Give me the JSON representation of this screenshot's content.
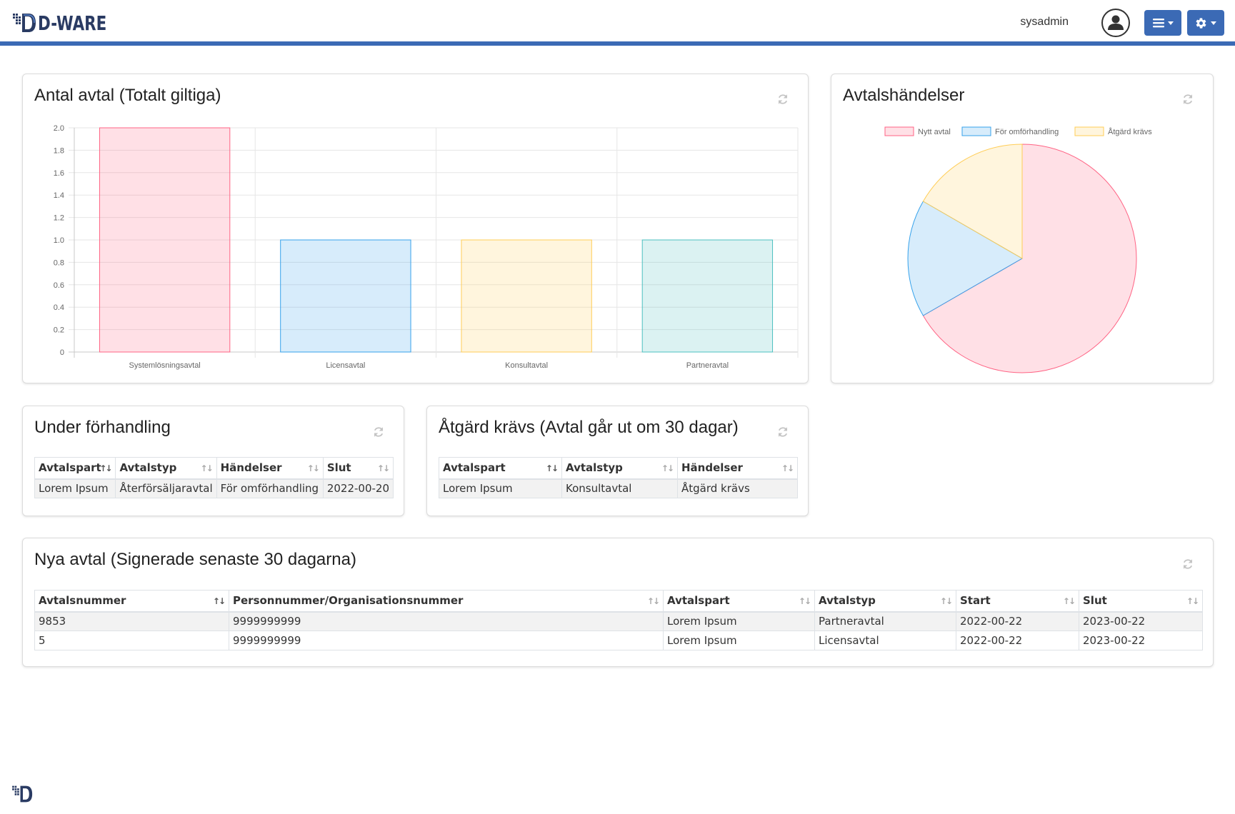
{
  "header": {
    "logo_text": "D-WARE",
    "username": "sysadmin"
  },
  "colors": {
    "accent": "#3b6ab5",
    "pink": "#ff6384",
    "blue": "#36a2eb",
    "yellow": "#ffcd56",
    "teal": "#4bc0c0"
  },
  "chart_data": [
    {
      "type": "bar",
      "title": "Antal avtal (Totalt giltiga)",
      "categories": [
        "Systemlösningsavtal",
        "Licensavtal",
        "Konsultavtal",
        "Partneravtal"
      ],
      "values": [
        2,
        1,
        1,
        1
      ],
      "ylim": [
        0,
        2
      ],
      "yticks": [
        "2.0",
        "1.8",
        "1.6",
        "1.4",
        "1.2",
        "1.0",
        "0.8",
        "0.6",
        "0.4",
        "0.2",
        "0"
      ],
      "grid": true
    },
    {
      "type": "pie",
      "title": "Avtalshändelser",
      "labels": [
        "Nytt avtal",
        "För omförhandling",
        "Åtgärd krävs"
      ],
      "values": [
        4,
        1,
        1
      ],
      "legend": "top"
    }
  ],
  "negotiation": {
    "title": "Under förhandling",
    "columns": [
      "Avtalspart",
      "Avtalstyp",
      "Händelser",
      "Slut"
    ],
    "rows": [
      [
        "Lorem Ipsum",
        "Återförsäljaravtal",
        "För omförhandling",
        "2022-00-20"
      ]
    ]
  },
  "action": {
    "title": "Åtgärd krävs (Avtal går ut om 30 dagar)",
    "columns": [
      "Avtalspart",
      "Avtalstyp",
      "Händelser"
    ],
    "rows": [
      [
        "Lorem Ipsum",
        "Konsultavtal",
        "Åtgärd krävs"
      ]
    ]
  },
  "new_contracts": {
    "title": "Nya avtal (Signerade senaste 30 dagarna)",
    "columns": [
      "Avtalsnummer",
      "Personnummer/Organisationsnummer",
      "Avtalspart",
      "Avtalstyp",
      "Start",
      "Slut"
    ],
    "rows": [
      [
        "9853",
        "9999999999",
        "Lorem Ipsum",
        "Partneravtal",
        "2022-00-22",
        "2023-00-22"
      ],
      [
        "5",
        "9999999999",
        "Lorem Ipsum",
        "Licensavtal",
        "2022-00-22",
        "2023-00-22"
      ]
    ]
  },
  "icons": {
    "refresh": "refresh-icon",
    "user": "user-circle-icon",
    "menu": "bars-icon",
    "settings": "gear-icon"
  }
}
